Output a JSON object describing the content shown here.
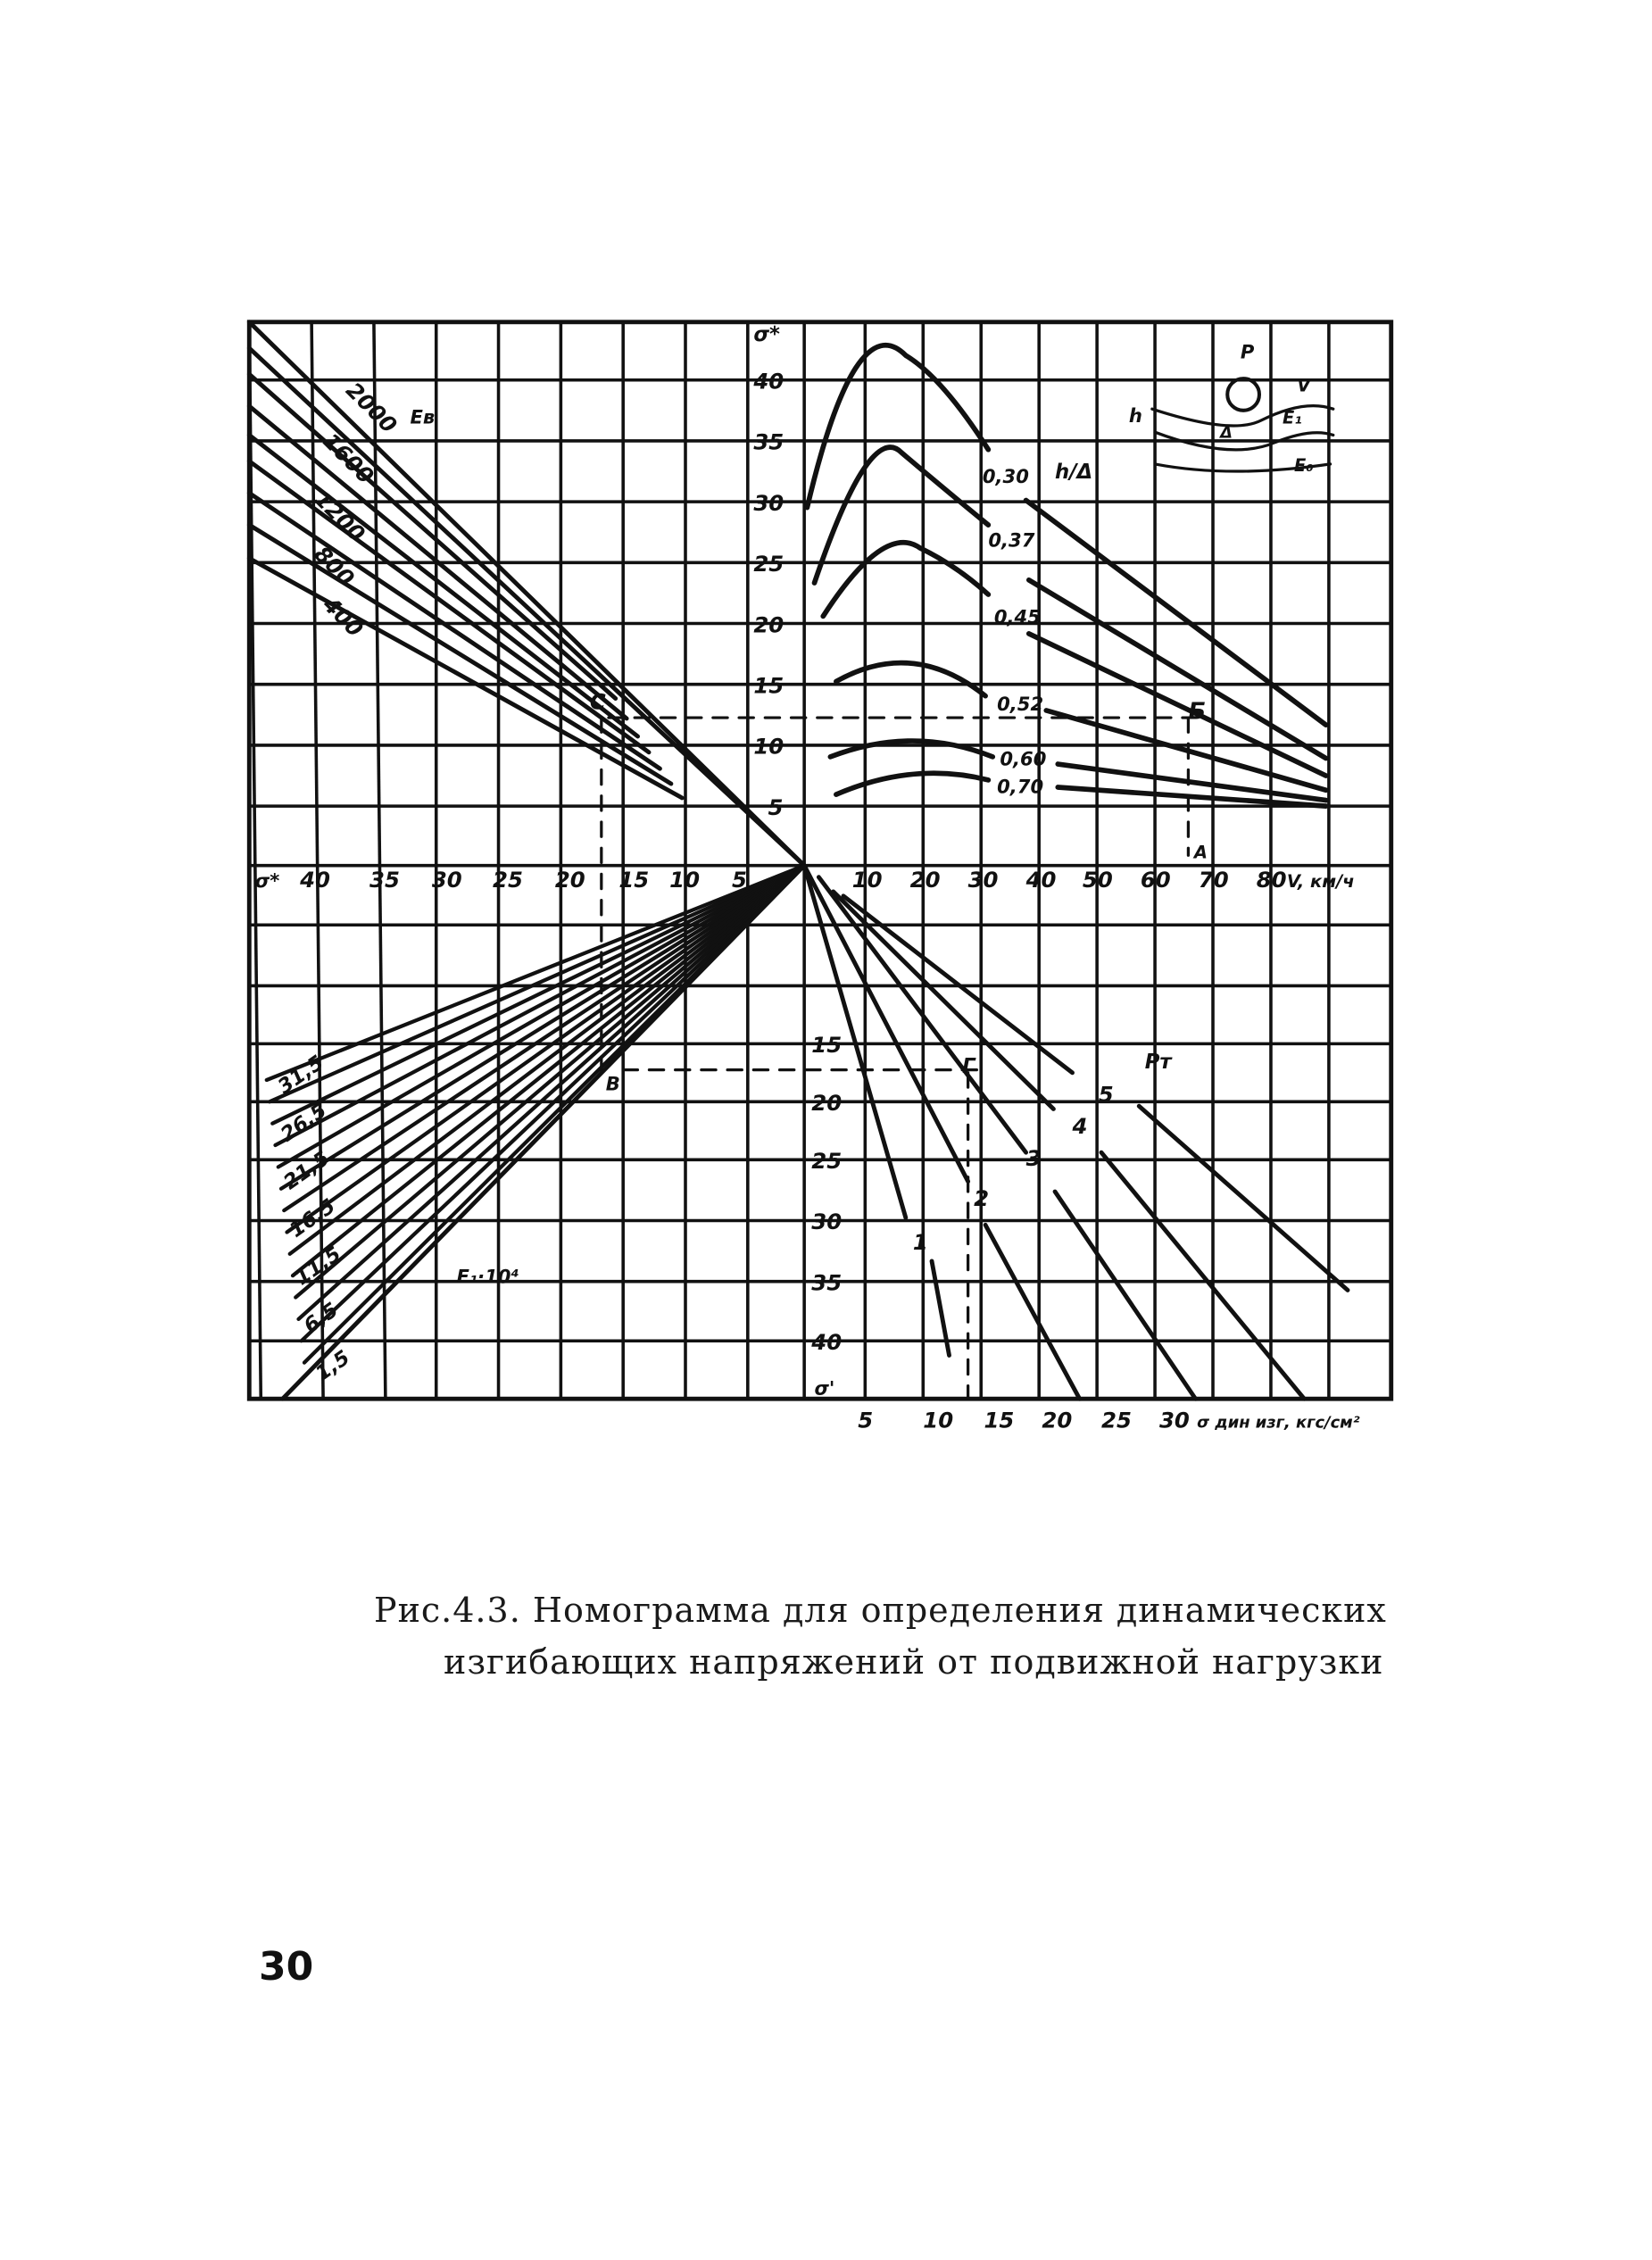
{
  "figure": {
    "top_axis_label": "σ*",
    "left_axis_label": "σ*",
    "bottom_left_axis_label": "σ'",
    "v_axis_label": "V, км/ч",
    "bottom_axis_label": "σ дин изг, кгс/см²",
    "left_ticks": [
      "40",
      "35",
      "30",
      "25",
      "20",
      "15",
      "10",
      "5"
    ],
    "v_ticks": [
      "10",
      "20",
      "30",
      "40",
      "50",
      "60",
      "70",
      "80"
    ],
    "up_ticks": [
      "40",
      "35",
      "30",
      "25",
      "20",
      "15",
      "10",
      "5"
    ],
    "down_ticks": [
      "15",
      "20",
      "25",
      "30",
      "35",
      "40"
    ],
    "bottom_ticks": [
      "5",
      "10",
      "15",
      "20",
      "25",
      "30"
    ],
    "es_label": "Eв",
    "es_values": [
      "2000",
      "1600",
      "1200",
      "800",
      "400"
    ],
    "h_delta_label": "h/Δ",
    "h_delta_values": [
      "0,30",
      "0,37",
      "0,45",
      "0,52",
      "0,60",
      "0,70"
    ],
    "e1_label": "E₁·10⁴",
    "e1_values": [
      "31,5",
      "26,5",
      "21,5",
      "16,5",
      "11,5",
      "6,5",
      "1,5"
    ],
    "load_label": "Pт",
    "load_numbers": [
      "1",
      "2",
      "3",
      "4",
      "5"
    ],
    "points": {
      "a": "А",
      "b": "Б",
      "c": "С",
      "v": "В",
      "g": "Г"
    },
    "inset": {
      "p": "P",
      "v": "V",
      "h": "h",
      "delta": "Δ",
      "e1": "E₁",
      "e0": "E₀"
    }
  },
  "caption": {
    "line1": "Рис.4.3. Номограмма для определения динамических",
    "line2": "изгибающих напряжений от подвижной нагрузки"
  },
  "page_number": "30"
}
